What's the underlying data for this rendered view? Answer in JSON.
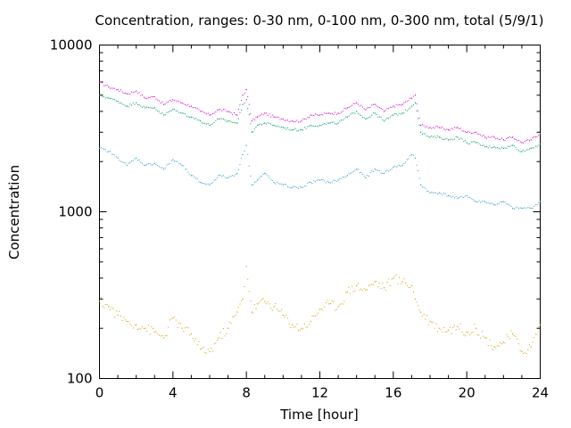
{
  "chart_data": {
    "type": "scatter",
    "title": "Concentration, ranges: 0-30 nm, 0-100 nm, 0-300 nm, total (5/9/1)",
    "xlabel": "Time [hour]",
    "ylabel": "Concentration",
    "xlim": [
      0,
      24
    ],
    "ylim": [
      100,
      10000
    ],
    "yscale": "log",
    "x_ticks": [
      0,
      4,
      8,
      12,
      16,
      20,
      24
    ],
    "x_tick_labels": [
      "0",
      "4",
      "8",
      "12",
      "16",
      "20",
      "24"
    ],
    "y_ticks": [
      100,
      1000,
      10000
    ],
    "y_tick_labels": [
      "100",
      "1000",
      "10000"
    ],
    "grid": false,
    "series": [
      {
        "color": "#cc00cc",
        "x": [
          0,
          0.5,
          1,
          1.5,
          2,
          2.5,
          3,
          3.5,
          4,
          4.5,
          5,
          5.5,
          6,
          6.5,
          7,
          7.5,
          7.8,
          8,
          8.3,
          8.6,
          9,
          9.5,
          10,
          10.5,
          11,
          11.5,
          12,
          12.5,
          13,
          13.5,
          14,
          14.5,
          15,
          15.5,
          16,
          16.5,
          17,
          17.2,
          17.5,
          18,
          18.5,
          19,
          19.5,
          20,
          20.5,
          21,
          21.5,
          22,
          22.5,
          23,
          23.5,
          24
        ],
        "y": [
          6000,
          5600,
          5400,
          5100,
          5300,
          4800,
          4900,
          4400,
          4700,
          4500,
          4300,
          4000,
          3800,
          4100,
          4000,
          3800,
          5000,
          5400,
          3500,
          3700,
          3900,
          3700,
          3600,
          3500,
          3500,
          3800,
          3800,
          3900,
          3900,
          4200,
          4500,
          4100,
          4400,
          4000,
          4300,
          4400,
          4800,
          5000,
          3300,
          3200,
          3200,
          3100,
          3200,
          3000,
          3000,
          2800,
          2800,
          2700,
          2800,
          2600,
          2700,
          2950
        ]
      },
      {
        "color": "#009966",
        "x": [
          0,
          0.5,
          1,
          1.5,
          2,
          2.5,
          3,
          3.5,
          4,
          4.5,
          5,
          5.5,
          6,
          6.5,
          7,
          7.5,
          7.8,
          8,
          8.3,
          8.6,
          9,
          9.5,
          10,
          10.5,
          11,
          11.5,
          12,
          12.5,
          13,
          13.5,
          14,
          14.5,
          15,
          15.5,
          16,
          16.5,
          17,
          17.2,
          17.5,
          18,
          18.5,
          19,
          19.5,
          20,
          20.5,
          21,
          21.5,
          22,
          22.5,
          23,
          23.5,
          24
        ],
        "y": [
          5000,
          4800,
          4600,
          4300,
          4500,
          4200,
          4200,
          3800,
          4100,
          3900,
          3700,
          3500,
          3300,
          3600,
          3500,
          3400,
          4400,
          4700,
          3000,
          3300,
          3400,
          3300,
          3200,
          3100,
          3100,
          3300,
          3300,
          3400,
          3400,
          3700,
          4000,
          3600,
          3900,
          3500,
          3800,
          3900,
          4300,
          4500,
          3000,
          2800,
          2800,
          2700,
          2800,
          2600,
          2600,
          2450,
          2450,
          2400,
          2500,
          2300,
          2400,
          2550
        ]
      },
      {
        "color": "#3399cc",
        "x": [
          0,
          0.5,
          1,
          1.5,
          2,
          2.5,
          3,
          3.5,
          4,
          4.5,
          5,
          5.5,
          6,
          6.5,
          7,
          7.5,
          7.8,
          8,
          8.3,
          8.6,
          9,
          9.5,
          10,
          10.5,
          11,
          11.5,
          12,
          12.5,
          13,
          13.5,
          14,
          14.5,
          15,
          15.5,
          16,
          16.5,
          17,
          17.2,
          17.5,
          18,
          18.5,
          19,
          19.5,
          20,
          20.5,
          21,
          21.5,
          22,
          22.5,
          23,
          23.5,
          24
        ],
        "y": [
          2400,
          2300,
          2100,
          1900,
          2100,
          1900,
          1950,
          1800,
          2050,
          1900,
          1650,
          1500,
          1450,
          1650,
          1600,
          1700,
          2200,
          2500,
          1450,
          1550,
          1700,
          1500,
          1450,
          1400,
          1400,
          1500,
          1550,
          1500,
          1550,
          1650,
          1800,
          1600,
          1800,
          1700,
          1850,
          1900,
          2200,
          2100,
          1450,
          1300,
          1300,
          1250,
          1200,
          1250,
          1150,
          1150,
          1100,
          1150,
          1050,
          1050,
          1050,
          1150
        ]
      },
      {
        "color": "#dd9900",
        "x": [
          0,
          0.5,
          1,
          1.5,
          2,
          2.5,
          3,
          3.5,
          4,
          4.5,
          5,
          5.5,
          6,
          6.5,
          7,
          7.5,
          7.8,
          8,
          8.3,
          8.6,
          9,
          9.5,
          10,
          10.5,
          11,
          11.5,
          12,
          12.5,
          13,
          13.5,
          14,
          14.5,
          15,
          15.5,
          16,
          16.5,
          17,
          17.2,
          17.5,
          18,
          18.5,
          19,
          19.5,
          20,
          20.5,
          21,
          21.5,
          22,
          22.5,
          23,
          23.5,
          24
        ],
        "y": [
          290,
          270,
          240,
          220,
          210,
          200,
          190,
          175,
          230,
          200,
          185,
          150,
          145,
          175,
          200,
          250,
          300,
          470,
          250,
          280,
          290,
          270,
          240,
          210,
          200,
          220,
          260,
          280,
          270,
          330,
          360,
          340,
          380,
          350,
          400,
          380,
          360,
          300,
          250,
          220,
          200,
          195,
          205,
          190,
          200,
          175,
          155,
          165,
          185,
          145,
          155,
          210
        ]
      }
    ]
  }
}
